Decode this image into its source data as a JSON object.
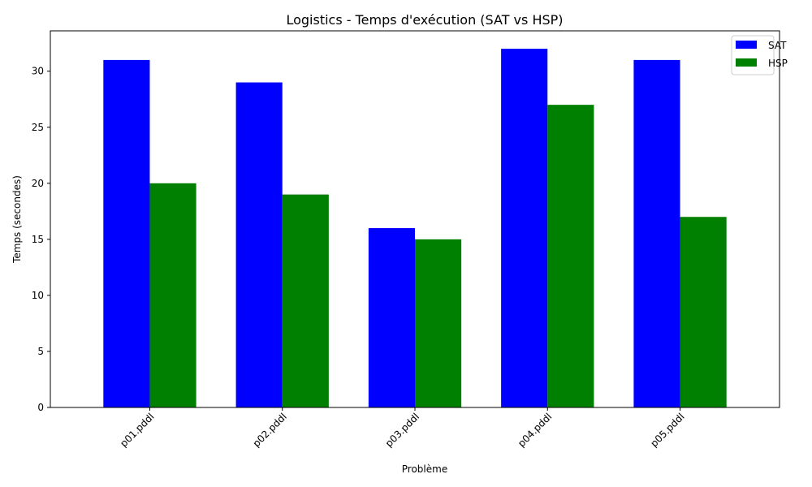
{
  "chart_data": {
    "type": "bar",
    "title": "Logistics - Temps d'exécution (SAT vs HSP)",
    "xlabel": "Problème",
    "ylabel": "Temps (secondes)",
    "categories": [
      "p01.pddl",
      "p02.pddl",
      "p03.pddl",
      "p04.pddl",
      "p05.pddl"
    ],
    "series": [
      {
        "name": "SAT",
        "color": "#0000ff",
        "values": [
          31,
          29,
          16,
          32,
          31
        ]
      },
      {
        "name": "HSP",
        "color": "#008000",
        "values": [
          20,
          19,
          15,
          27,
          17
        ]
      }
    ],
    "ylim": [
      0,
      33.6
    ],
    "yticks": [
      0,
      5,
      10,
      15,
      20,
      25,
      30
    ],
    "legend_position": "top-right",
    "grid": false
  }
}
